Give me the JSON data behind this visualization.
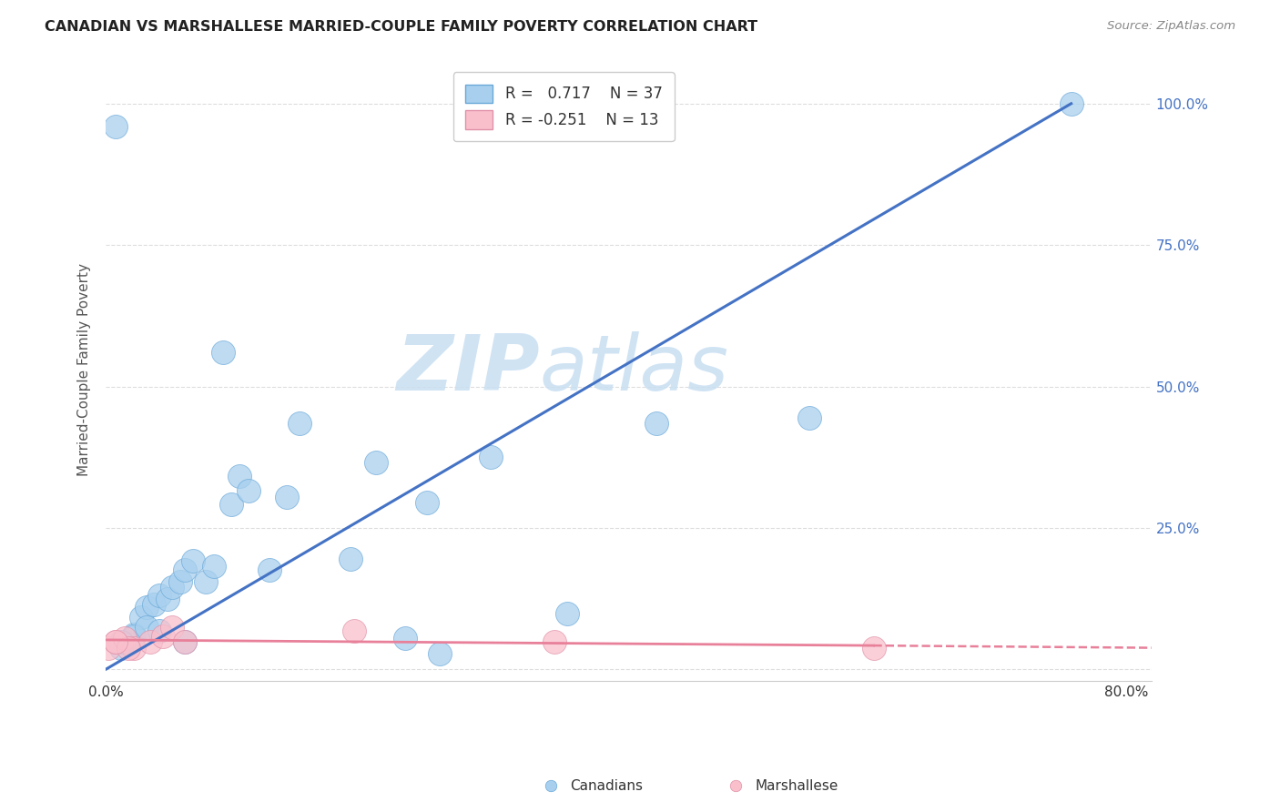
{
  "title": "CANADIAN VS MARSHALLESE MARRIED-COUPLE FAMILY POVERTY CORRELATION CHART",
  "source": "Source: ZipAtlas.com",
  "ylabel": "Married-Couple Family Poverty",
  "xlim": [
    0,
    0.82
  ],
  "ylim": [
    -0.02,
    1.08
  ],
  "x_ticks": [
    0.0,
    0.8
  ],
  "x_tick_labels": [
    "0.0%",
    "80.0%"
  ],
  "y_ticks": [
    0.0,
    0.25,
    0.5,
    0.75,
    1.0
  ],
  "y_tick_labels": [
    "",
    "25.0%",
    "50.0%",
    "75.0%",
    "100.0%"
  ],
  "canadian_R": "0.717",
  "canadian_N": "37",
  "marshallese_R": "-0.251",
  "marshallese_N": "13",
  "canadian_color": "#A8D0EE",
  "marshallese_color": "#F9C0CC",
  "canadian_line_color": "#4472C4",
  "marshallese_line_color": "#E8809A",
  "legend_label_canadian": "Canadians",
  "legend_label_marshallese": "Marshallese",
  "watermark_zip": "ZIP",
  "watermark_atlas": "atlas",
  "background_color": "#FFFFFF",
  "grid_color": "#DDDDDD",
  "canadian_x": [
    0.757,
    0.235,
    0.008,
    0.012,
    0.018,
    0.022,
    0.028,
    0.032,
    0.038,
    0.042,
    0.048,
    0.052,
    0.058,
    0.062,
    0.068,
    0.078,
    0.085,
    0.092,
    0.098,
    0.105,
    0.112,
    0.128,
    0.142,
    0.152,
    0.192,
    0.212,
    0.252,
    0.262,
    0.302,
    0.362,
    0.432,
    0.552,
    0.022,
    0.012,
    0.032,
    0.062,
    0.042
  ],
  "canadian_y": [
    1.0,
    0.055,
    0.96,
    0.038,
    0.045,
    0.062,
    0.092,
    0.11,
    0.115,
    0.13,
    0.125,
    0.145,
    0.155,
    0.175,
    0.192,
    0.155,
    0.182,
    0.56,
    0.292,
    0.342,
    0.315,
    0.175,
    0.305,
    0.435,
    0.195,
    0.365,
    0.295,
    0.028,
    0.375,
    0.098,
    0.435,
    0.445,
    0.058,
    0.048,
    0.075,
    0.048,
    0.068
  ],
  "marshallese_x": [
    0.002,
    0.008,
    0.015,
    0.022,
    0.035,
    0.045,
    0.052,
    0.062,
    0.195,
    0.352,
    0.602,
    0.018,
    0.008
  ],
  "marshallese_y": [
    0.038,
    0.048,
    0.055,
    0.038,
    0.048,
    0.058,
    0.075,
    0.048,
    0.068,
    0.048,
    0.038,
    0.038,
    0.048
  ],
  "canadian_line_x": [
    0.0,
    0.757
  ],
  "canadian_line_y": [
    0.0,
    1.0
  ],
  "marshallese_line_x0": 0.0,
  "marshallese_line_x1": 0.602,
  "marshallese_line_x2": 0.82,
  "marshallese_line_y_start": 0.052,
  "marshallese_line_y_mid": 0.042,
  "marshallese_line_y_end": 0.038
}
